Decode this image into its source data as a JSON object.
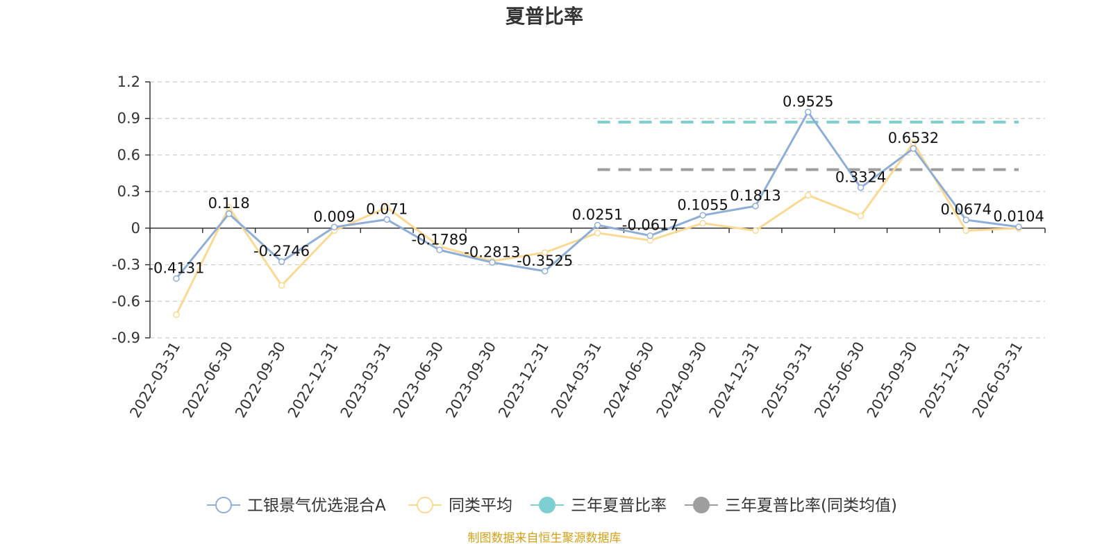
{
  "chart_data": {
    "type": "line",
    "title": "夏普比率",
    "categories": [
      "2022-03-31",
      "2022-06-30",
      "2022-09-30",
      "2022-12-31",
      "2023-03-31",
      "2023-06-30",
      "2023-09-30",
      "2023-12-31",
      "2024-03-31",
      "2024-06-30",
      "2024-09-30",
      "2024-12-31",
      "2025-03-31",
      "2025-06-30",
      "2025-09-30",
      "2025-12-31",
      "2026-03-31"
    ],
    "ylim": [
      -0.9,
      1.2
    ],
    "yticks": [
      1.2,
      0.9,
      0.6,
      0.3,
      0,
      -0.3,
      -0.6,
      -0.9
    ],
    "ytick_labels": [
      "1.2",
      "0.9",
      "0.6",
      "0.3",
      "0",
      "-0.3",
      "-0.6",
      "-0.9"
    ],
    "series": [
      {
        "name": "工银景气优选混合A",
        "color": "#8eaed8",
        "values": [
          -0.4131,
          0.118,
          -0.2746,
          0.009,
          0.071,
          -0.1789,
          -0.2813,
          -0.3525,
          0.0251,
          -0.0617,
          0.1055,
          0.1813,
          0.9525,
          0.3324,
          0.6532,
          0.0674,
          0.0104
        ],
        "labels": [
          "-0.4131",
          "0.118",
          "-0.2746",
          "0.009",
          "0.071",
          "-0.1789",
          "-0.2813",
          "-0.3525",
          "0.0251",
          "-0.0617",
          "0.1055",
          "0.1813",
          "0.9525",
          "0.3324",
          "0.6532",
          "0.0674",
          "0.0104"
        ]
      },
      {
        "name": "同类平均",
        "color": "#fcd993",
        "values": [
          -0.71,
          0.17,
          -0.47,
          -0.02,
          0.17,
          -0.15,
          -0.27,
          -0.2,
          -0.04,
          -0.1,
          0.04,
          -0.02,
          0.27,
          0.1,
          0.7,
          -0.02,
          0.0
        ]
      }
    ],
    "reference_lines": [
      {
        "name": "三年夏普比率",
        "color": "#7ecfd0",
        "value": 0.87,
        "from": "2024-03-31",
        "to": "2026-03-31",
        "style": "dashed"
      },
      {
        "name": "三年夏普比率(同类均值)",
        "color": "#9e9e9e",
        "value": 0.48,
        "from": "2024-03-31",
        "to": "2026-03-31",
        "style": "dashed"
      }
    ],
    "grid": true,
    "legend_position": "bottom",
    "legend": [
      {
        "name": "工银景气优选混合A",
        "color": "#8eaed8",
        "marker": "hollow-circle"
      },
      {
        "name": "同类平均",
        "color": "#fcd993",
        "marker": "hollow-circle"
      },
      {
        "name": "三年夏普比率",
        "color": "#7ecfd0",
        "marker": "filled-circle"
      },
      {
        "name": "三年夏普比率(同类均值)",
        "color": "#9e9e9e",
        "marker": "filled-circle"
      }
    ],
    "source_note": "制图数据来自恒生聚源数据库"
  }
}
